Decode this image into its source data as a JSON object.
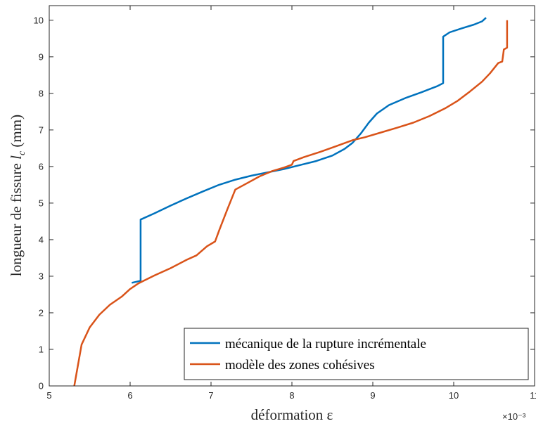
{
  "chart_data": {
    "type": "line",
    "xlabel": "déformation ε",
    "ylabel": "longueur de fissure l_c (mm)",
    "ylabel_main": "longueur de fissure ",
    "ylabel_var": "l",
    "ylabel_sub": "c",
    "ylabel_unit": " (mm)",
    "x_multiplier": "×10⁻³",
    "xlim": [
      5,
      11
    ],
    "ylim": [
      0,
      10.4
    ],
    "x_ticks": [
      "5",
      "6",
      "7",
      "8",
      "9",
      "10",
      "11"
    ],
    "y_ticks": [
      "0",
      "1",
      "2",
      "3",
      "4",
      "5",
      "6",
      "7",
      "8",
      "9",
      "10"
    ],
    "grid": false,
    "legend_position": "bottom-right",
    "series": [
      {
        "name": "mécanique de la rupture incrémentale",
        "color": "#0072BD",
        "points": [
          [
            6.02,
            2.82
          ],
          [
            6.12,
            2.87
          ],
          [
            6.13,
            2.87
          ],
          [
            6.13,
            4.55
          ],
          [
            6.3,
            4.72
          ],
          [
            6.5,
            4.93
          ],
          [
            6.7,
            5.13
          ],
          [
            6.9,
            5.32
          ],
          [
            7.1,
            5.5
          ],
          [
            7.3,
            5.64
          ],
          [
            7.5,
            5.75
          ],
          [
            7.7,
            5.84
          ],
          [
            7.9,
            5.93
          ],
          [
            8.1,
            6.04
          ],
          [
            8.3,
            6.15
          ],
          [
            8.5,
            6.3
          ],
          [
            8.65,
            6.48
          ],
          [
            8.75,
            6.65
          ],
          [
            8.85,
            6.9
          ],
          [
            8.95,
            7.2
          ],
          [
            9.05,
            7.45
          ],
          [
            9.2,
            7.68
          ],
          [
            9.4,
            7.87
          ],
          [
            9.6,
            8.03
          ],
          [
            9.8,
            8.2
          ],
          [
            9.87,
            8.28
          ],
          [
            9.87,
            9.55
          ],
          [
            9.95,
            9.67
          ],
          [
            10.1,
            9.78
          ],
          [
            10.25,
            9.88
          ],
          [
            10.35,
            9.97
          ],
          [
            10.4,
            10.07
          ]
        ]
      },
      {
        "name": "modèle des zones cohésives",
        "color": "#D95319",
        "points": [
          [
            5.31,
            0.0
          ],
          [
            5.35,
            0.5
          ],
          [
            5.4,
            1.13
          ],
          [
            5.5,
            1.6
          ],
          [
            5.62,
            1.95
          ],
          [
            5.75,
            2.22
          ],
          [
            5.9,
            2.45
          ],
          [
            6.0,
            2.65
          ],
          [
            6.1,
            2.8
          ],
          [
            6.3,
            3.02
          ],
          [
            6.5,
            3.22
          ],
          [
            6.7,
            3.45
          ],
          [
            6.82,
            3.57
          ],
          [
            6.95,
            3.82
          ],
          [
            7.05,
            3.95
          ],
          [
            7.1,
            4.25
          ],
          [
            7.2,
            4.82
          ],
          [
            7.3,
            5.37
          ],
          [
            7.45,
            5.55
          ],
          [
            7.6,
            5.73
          ],
          [
            7.75,
            5.87
          ],
          [
            7.9,
            5.97
          ],
          [
            8.0,
            6.05
          ],
          [
            8.02,
            6.15
          ],
          [
            8.15,
            6.26
          ],
          [
            8.35,
            6.4
          ],
          [
            8.55,
            6.56
          ],
          [
            8.75,
            6.72
          ],
          [
            8.9,
            6.8
          ],
          [
            9.1,
            6.93
          ],
          [
            9.3,
            7.06
          ],
          [
            9.5,
            7.2
          ],
          [
            9.7,
            7.38
          ],
          [
            9.9,
            7.6
          ],
          [
            10.05,
            7.8
          ],
          [
            10.2,
            8.05
          ],
          [
            10.35,
            8.32
          ],
          [
            10.45,
            8.55
          ],
          [
            10.55,
            8.83
          ],
          [
            10.6,
            8.87
          ],
          [
            10.62,
            9.2
          ],
          [
            10.66,
            9.25
          ],
          [
            10.66,
            10.0
          ]
        ]
      }
    ]
  }
}
